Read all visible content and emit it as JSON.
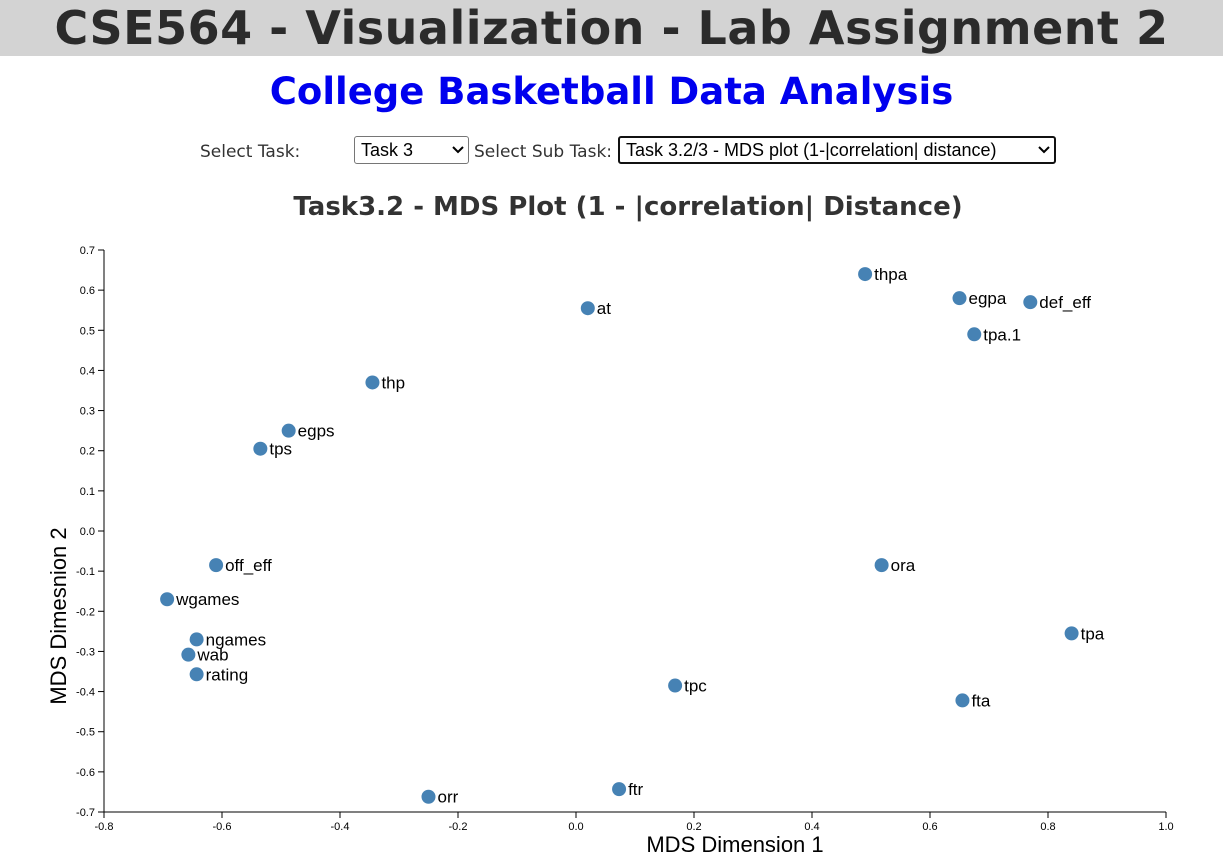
{
  "header": {
    "title": "CSE564 - Visualization - Lab Assignment 2",
    "subtitle": "College Basketball Data Analysis"
  },
  "controls": {
    "task_label": "Select Task:",
    "task_value": "Task 3",
    "subtask_label": "Select Sub Task:",
    "subtask_value": "Task 3.2/3 - MDS plot (1-|correlation| distance)"
  },
  "colors": {
    "point": "#4682b4",
    "subtitle": "#0000ee",
    "banner": "#d3d3d3"
  },
  "chart_data": {
    "type": "scatter",
    "title": "Task3.2 - MDS Plot (1 - |correlation| Distance)",
    "xlabel": "MDS Dimension 1",
    "ylabel": "MDS Dimesnion 2",
    "xlim": [
      -0.8,
      1.0
    ],
    "ylim": [
      -0.7,
      0.7
    ],
    "xticks": [
      "-0.8",
      "-0.6",
      "-0.4",
      "-0.2",
      "0.0",
      "0.2",
      "0.4",
      "0.6",
      "0.8",
      "1.0"
    ],
    "yticks": [
      "0.7",
      "0.6",
      "0.5",
      "0.4",
      "0.3",
      "0.2",
      "0.1",
      "0.0",
      "-0.1",
      "-0.2",
      "-0.3",
      "-0.4",
      "-0.5",
      "-0.6",
      "-0.7"
    ],
    "points": [
      {
        "label": "thpa",
        "x": 0.49,
        "y": 0.64
      },
      {
        "label": "egpa",
        "x": 0.65,
        "y": 0.58
      },
      {
        "label": "def_eff",
        "x": 0.77,
        "y": 0.57
      },
      {
        "label": "tpa.1",
        "x": 0.675,
        "y": 0.49
      },
      {
        "label": "at",
        "x": 0.02,
        "y": 0.555
      },
      {
        "label": "thp",
        "x": -0.345,
        "y": 0.37
      },
      {
        "label": "egps",
        "x": -0.487,
        "y": 0.25
      },
      {
        "label": "tps",
        "x": -0.535,
        "y": 0.205
      },
      {
        "label": "off_eff",
        "x": -0.61,
        "y": -0.085
      },
      {
        "label": "ora",
        "x": 0.518,
        "y": -0.085
      },
      {
        "label": "wgames",
        "x": -0.693,
        "y": -0.17
      },
      {
        "label": "ngames",
        "x": -0.643,
        "y": -0.27
      },
      {
        "label": "wab",
        "x": -0.657,
        "y": -0.308
      },
      {
        "label": "rating",
        "x": -0.643,
        "y": -0.357
      },
      {
        "label": "tpa",
        "x": 0.84,
        "y": -0.255
      },
      {
        "label": "tpc",
        "x": 0.168,
        "y": -0.385
      },
      {
        "label": "fta",
        "x": 0.655,
        "y": -0.422
      },
      {
        "label": "ftr",
        "x": 0.073,
        "y": -0.643
      },
      {
        "label": "orr",
        "x": -0.25,
        "y": -0.662
      }
    ]
  }
}
